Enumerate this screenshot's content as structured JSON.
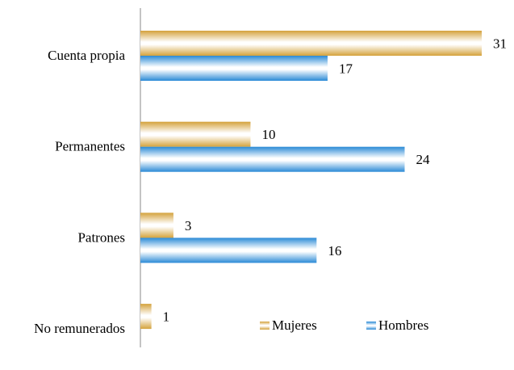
{
  "chart_data": {
    "type": "hbar",
    "categories": [
      "Cuenta propia",
      "Permanentes",
      "Patrones",
      "No remunerados"
    ],
    "series": [
      {
        "name": "Mujeres",
        "color": "#d4a23c",
        "values": [
          31,
          10,
          3,
          1
        ]
      },
      {
        "name": "Hombres",
        "color": "#2a8ad6",
        "values": [
          17,
          24,
          16,
          null
        ]
      }
    ],
    "legend": "bottom-right"
  }
}
